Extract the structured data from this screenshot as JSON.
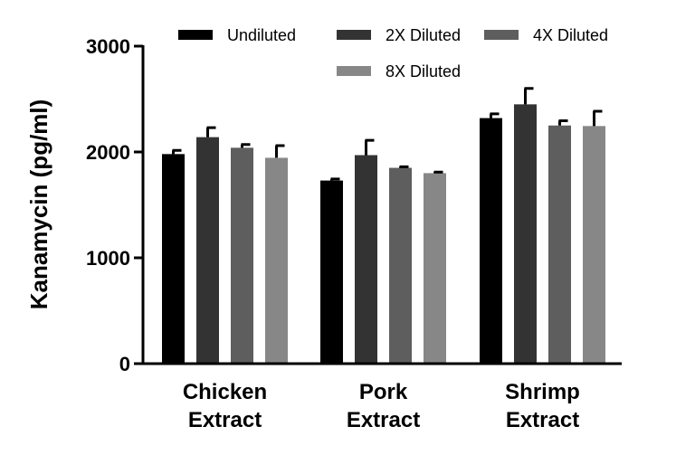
{
  "chart_data": {
    "type": "bar",
    "title": "",
    "xlabel": "",
    "ylabel": "Kanamycin (pg/ml)",
    "ylim": [
      0,
      3000
    ],
    "yticks": [
      0,
      1000,
      2000,
      3000
    ],
    "categories": [
      [
        "Chicken",
        "Extract"
      ],
      [
        "Pork",
        "Extract"
      ],
      [
        "Shrimp",
        "Extract"
      ]
    ],
    "series": [
      {
        "name": "Undiluted",
        "color": "#000000",
        "values": [
          1980,
          1730,
          2320
        ],
        "errors": [
          35,
          15,
          40
        ]
      },
      {
        "name": "2X Diluted",
        "color": "#333333",
        "values": [
          2140,
          1970,
          2450
        ],
        "errors": [
          90,
          140,
          150
        ]
      },
      {
        "name": "4X Diluted",
        "color": "#5e5e5e",
        "values": [
          2040,
          1850,
          2250
        ],
        "errors": [
          30,
          10,
          45
        ]
      },
      {
        "name": "8X Diluted",
        "color": "#878787",
        "values": [
          1945,
          1800,
          2245
        ],
        "errors": [
          115,
          10,
          140
        ]
      }
    ],
    "legend_position": "top"
  }
}
